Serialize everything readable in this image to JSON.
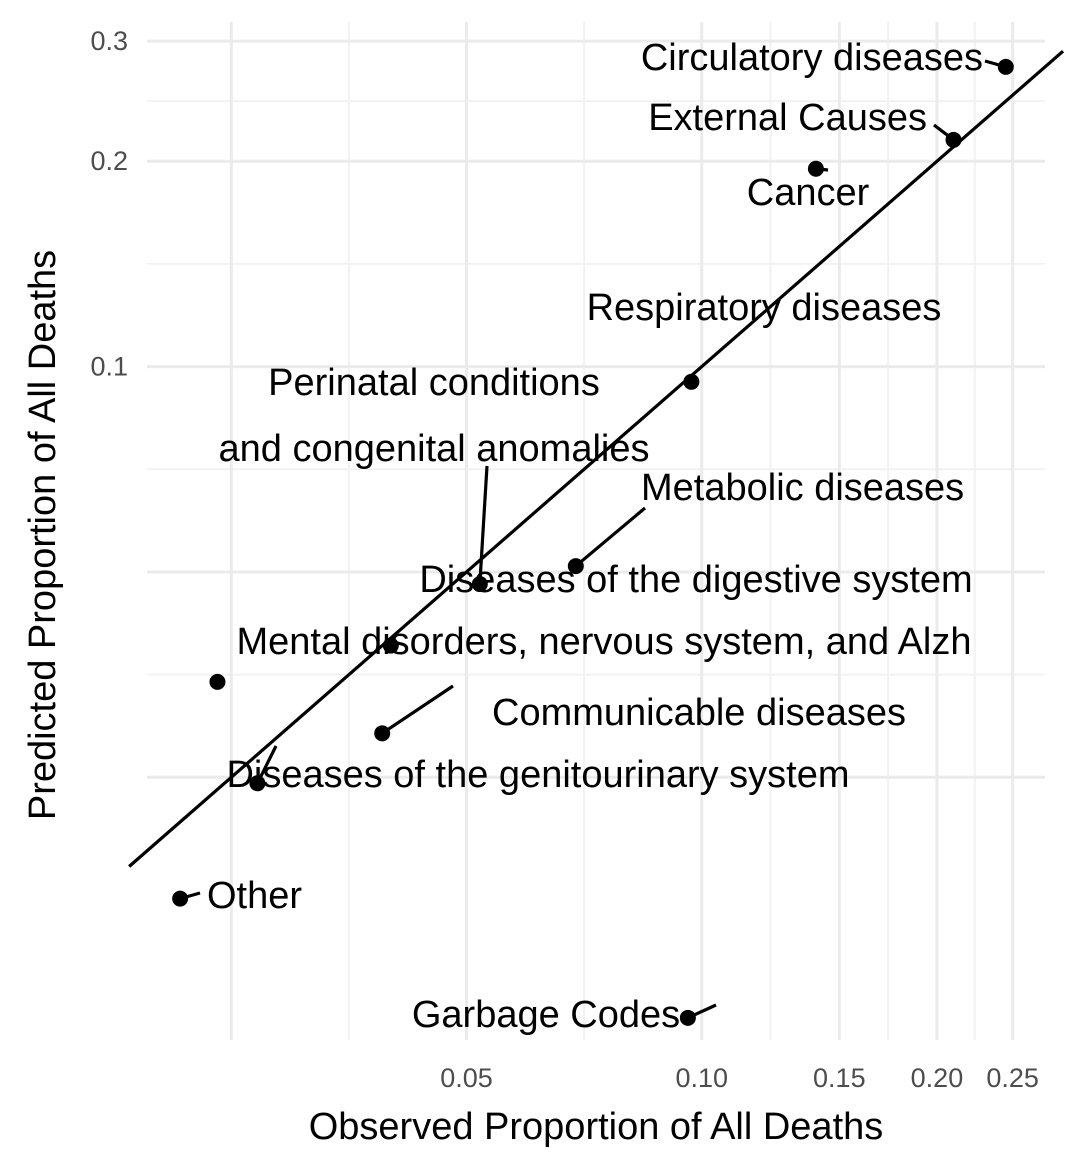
{
  "chart_data": {
    "type": "scatter",
    "xlabel": "Observed Proportion of All Deaths",
    "ylabel": "Predicted Proportion of All Deaths",
    "x_scale": "log",
    "y_scale": "log",
    "xlim": [
      0.0195,
      0.275
    ],
    "ylim": [
      0.0103,
      0.32
    ],
    "x_ticks": [
      0.05,
      0.1,
      0.15,
      0.2,
      0.25
    ],
    "x_tick_labels": [
      "0.05",
      "0.10",
      "0.15",
      "0.20",
      "0.25"
    ],
    "y_ticks": [
      0.1,
      0.2,
      0.3
    ],
    "y_tick_labels": [
      "0.1",
      "0.2",
      "0.3"
    ],
    "reference_line": "y = x",
    "grid": true,
    "points": [
      {
        "label": "Circulatory diseases",
        "x": 0.245,
        "y": 0.275
      },
      {
        "label": "External Causes",
        "x": 0.21,
        "y": 0.215
      },
      {
        "label": "Cancer",
        "x": 0.14,
        "y": 0.195
      },
      {
        "label": "Respiratory diseases",
        "x": 0.097,
        "y": 0.095
      },
      {
        "label": "Perinatal conditions and congenital anomalies",
        "lines": [
          "Perinatal conditions",
          "and congenital anomalies"
        ],
        "x": 0.052,
        "y": 0.048
      },
      {
        "label": "Metabolic diseases",
        "x": 0.069,
        "y": 0.051
      },
      {
        "label": "Diseases of the digestive system",
        "x": 0.04,
        "y": 0.039
      },
      {
        "label": "Mental disorders, nervous system, and Alzh",
        "x": 0.024,
        "y": 0.0345
      },
      {
        "label": "Communicable diseases",
        "x": 0.039,
        "y": 0.029
      },
      {
        "label": "Diseases of the genitourinary system",
        "x": 0.027,
        "y": 0.0245
      },
      {
        "label": "Other",
        "x": 0.0215,
        "y": 0.0166
      },
      {
        "label": "Garbage Codes",
        "x": 0.096,
        "y": 0.0111
      }
    ]
  }
}
